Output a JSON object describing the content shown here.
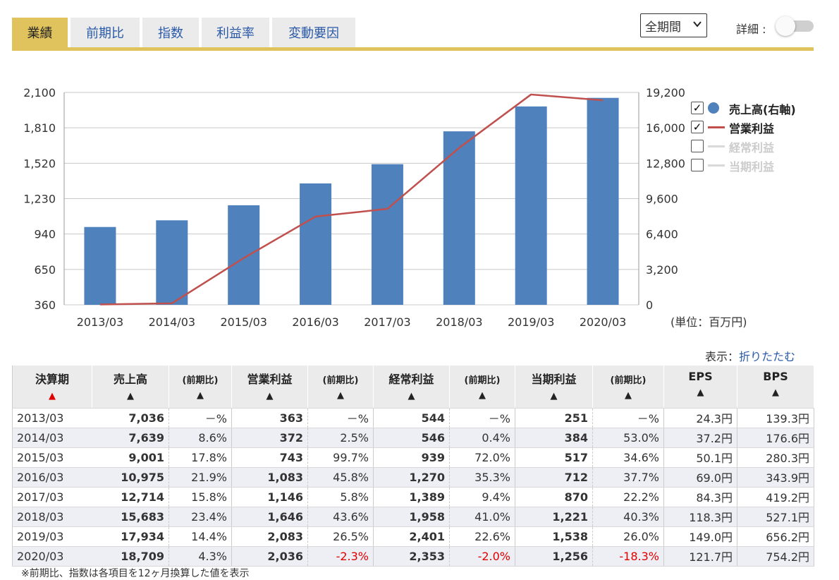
{
  "tabs": [
    {
      "label": "業績",
      "active": true
    },
    {
      "label": "前期比",
      "active": false
    },
    {
      "label": "指数",
      "active": false
    },
    {
      "label": "利益率",
      "active": false
    },
    {
      "label": "変動要因",
      "active": false
    }
  ],
  "period_select": {
    "value": "全期間"
  },
  "detail": {
    "label": "詳細 :",
    "enabled": false
  },
  "unit_label": "(単位：百万円)",
  "legend": [
    {
      "label": "売上高(右軸)",
      "checked": true,
      "marker": "dot",
      "color": "#4f81bd"
    },
    {
      "label": "営業利益",
      "checked": true,
      "marker": "line",
      "color": "#c0504d"
    },
    {
      "label": "経常利益",
      "checked": false,
      "marker": "line",
      "color": "#d9d9d9"
    },
    {
      "label": "当期利益",
      "checked": false,
      "marker": "line",
      "color": "#d9d9d9"
    }
  ],
  "chart_data": {
    "type": "bar",
    "categories": [
      "2013/03",
      "2014/03",
      "2015/03",
      "2016/03",
      "2017/03",
      "2018/03",
      "2019/03",
      "2020/03"
    ],
    "series": [
      {
        "name": "売上高(右軸)",
        "type": "bar",
        "axis": "right",
        "color": "#4f81bd",
        "values": [
          7036,
          7639,
          9001,
          10975,
          12714,
          15683,
          17934,
          18709
        ]
      },
      {
        "name": "営業利益",
        "type": "line",
        "axis": "left",
        "color": "#c0504d",
        "values": [
          363,
          372,
          743,
          1083,
          1146,
          1646,
          2083,
          2036
        ]
      }
    ],
    "left_axis": {
      "ticks": [
        "2,100",
        "1,810",
        "1,520",
        "1,230",
        "940",
        "650",
        "360"
      ],
      "ylim": [
        360,
        2100
      ]
    },
    "right_axis": {
      "ticks": [
        "19,200",
        "16,000",
        "12,800",
        "9,600",
        "6,400",
        "3,200",
        "0"
      ],
      "ylim": [
        0,
        19200
      ]
    },
    "grid": true,
    "legend_position": "right"
  },
  "display": {
    "label": "表示：",
    "link": "折りたたむ"
  },
  "table": {
    "headers": [
      {
        "label": "決算期",
        "arrow": "▲",
        "arrow_red": true,
        "sub": false
      },
      {
        "label": "売上高",
        "arrow": "▲",
        "sub": false
      },
      {
        "label": "(前期比)",
        "arrow": "▲",
        "sub": true
      },
      {
        "label": "営業利益",
        "arrow": "▲",
        "sub": false
      },
      {
        "label": "(前期比)",
        "arrow": "▲",
        "sub": true
      },
      {
        "label": "経常利益",
        "arrow": "▲",
        "sub": false
      },
      {
        "label": "(前期比)",
        "arrow": "▲",
        "sub": true
      },
      {
        "label": "当期利益",
        "arrow": "▲",
        "sub": false
      },
      {
        "label": "(前期比)",
        "arrow": "▲",
        "sub": true
      },
      {
        "label": "EPS",
        "arrow": "▲",
        "sub": false
      },
      {
        "label": "BPS",
        "arrow": "▲",
        "sub": false
      }
    ],
    "rows": [
      [
        "2013/03",
        "7,036",
        "－%",
        "363",
        "－%",
        "544",
        "－%",
        "251",
        "－%",
        "24.3円",
        "139.3円"
      ],
      [
        "2014/03",
        "7,639",
        "8.6%",
        "372",
        "2.5%",
        "546",
        "0.4%",
        "384",
        "53.0%",
        "37.2円",
        "176.6円"
      ],
      [
        "2015/03",
        "9,001",
        "17.8%",
        "743",
        "99.7%",
        "939",
        "72.0%",
        "517",
        "34.6%",
        "50.1円",
        "280.3円"
      ],
      [
        "2016/03",
        "10,975",
        "21.9%",
        "1,083",
        "45.8%",
        "1,270",
        "35.3%",
        "712",
        "37.7%",
        "69.0円",
        "343.9円"
      ],
      [
        "2017/03",
        "12,714",
        "15.8%",
        "1,146",
        "5.8%",
        "1,389",
        "9.4%",
        "870",
        "22.2%",
        "84.3円",
        "419.2円"
      ],
      [
        "2018/03",
        "15,683",
        "23.4%",
        "1,646",
        "43.6%",
        "1,958",
        "41.0%",
        "1,221",
        "40.3%",
        "118.3円",
        "527.1円"
      ],
      [
        "2019/03",
        "17,934",
        "14.4%",
        "2,083",
        "26.5%",
        "2,401",
        "22.6%",
        "1,538",
        "26.0%",
        "149.0円",
        "656.2円"
      ],
      [
        "2020/03",
        "18,709",
        "4.3%",
        "2,036",
        "-2.3%",
        "2,353",
        "-2.0%",
        "1,256",
        "-18.3%",
        "121.7円",
        "754.2円"
      ]
    ]
  },
  "footnote": "※前期比、指数は各項目を12ヶ月換算した値を表示"
}
